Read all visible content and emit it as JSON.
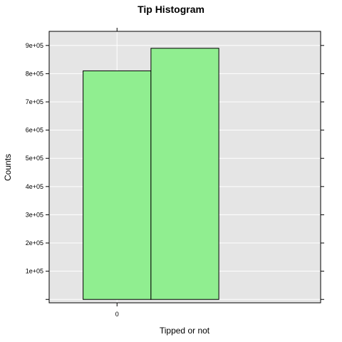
{
  "chart_data": {
    "type": "bar",
    "title": "Tip Histogram",
    "xlabel": "Tipped or not",
    "ylabel": "Counts",
    "x_ticks": [
      0
    ],
    "y_ticks": [
      100000,
      200000,
      300000,
      400000,
      500000,
      600000,
      700000,
      800000,
      900000
    ],
    "y_tick_labels": [
      "1e+05",
      "2e+05",
      "3e+05",
      "4e+05",
      "5e+05",
      "6e+05",
      "7e+05",
      "8e+05",
      "9e+05"
    ],
    "xlim": [
      -0.5,
      1.5
    ],
    "ylim": [
      -12000,
      950000
    ],
    "bins": [
      {
        "x_start": -0.25,
        "x_end": 0.25,
        "count": 810000
      },
      {
        "x_start": 0.25,
        "x_end": 0.75,
        "count": 890000
      }
    ],
    "bar_color": "#90ee90",
    "panel_background": "#e5e5e5",
    "grid": true
  }
}
